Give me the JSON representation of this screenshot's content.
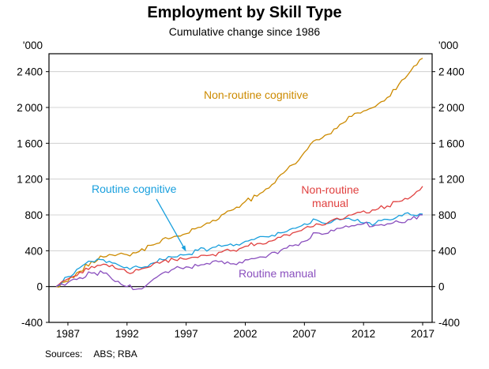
{
  "header": {
    "title": "Employment by Skill Type",
    "subtitle": "Cumulative change since 1986"
  },
  "footer": {
    "sources_label": "Sources:",
    "sources_value": "ABS; RBA"
  },
  "chart_data": {
    "type": "line",
    "title": "Employment by Skill Type",
    "subtitle": "Cumulative change since 1986",
    "unit_label": "'000",
    "ylabel": "'000",
    "grid": "horizontal",
    "legend_position": "inline-annotations",
    "xlim": [
      1985.4,
      2017.8
    ],
    "ylim": [
      -400,
      2600
    ],
    "yticks": [
      -400,
      0,
      400,
      800,
      1200,
      1600,
      2000,
      2400
    ],
    "xticks": [
      1987,
      1992,
      1997,
      2002,
      2007,
      2012,
      2017
    ],
    "x": [
      1986,
      1987,
      1988,
      1989,
      1990,
      1991,
      1992,
      1993,
      1994,
      1995,
      1996,
      1997,
      1998,
      1999,
      2000,
      2001,
      2002,
      2003,
      2004,
      2005,
      2006,
      2007,
      2008,
      2009,
      2010,
      2011,
      2012,
      2013,
      2014,
      2015,
      2016,
      2017
    ],
    "series": [
      {
        "name": "Non-routine cognitive",
        "color": "#cc8a00",
        "values": [
          0,
          60,
          170,
          280,
          330,
          345,
          355,
          390,
          460,
          530,
          560,
          590,
          660,
          710,
          800,
          860,
          950,
          1010,
          1100,
          1250,
          1360,
          1500,
          1640,
          1700,
          1810,
          1900,
          1960,
          2010,
          2110,
          2260,
          2410,
          2550
        ]
      },
      {
        "name": "Routine cognitive",
        "color": "#189fdd",
        "values": [
          0,
          110,
          210,
          280,
          300,
          260,
          215,
          215,
          255,
          300,
          330,
          355,
          405,
          420,
          450,
          455,
          505,
          545,
          555,
          600,
          650,
          700,
          745,
          705,
          745,
          745,
          710,
          705,
          750,
          795,
          800,
          810
        ]
      },
      {
        "name": "Non-routine manual",
        "color": "#e0403f",
        "values": [
          0,
          85,
          160,
          225,
          250,
          205,
          160,
          185,
          225,
          280,
          300,
          305,
          325,
          350,
          385,
          405,
          450,
          480,
          505,
          550,
          600,
          650,
          700,
          715,
          750,
          800,
          845,
          855,
          900,
          950,
          1000,
          1120
        ]
      },
      {
        "name": "Routine manual",
        "color": "#8a4fbe",
        "values": [
          0,
          45,
          100,
          150,
          150,
          55,
          0,
          -25,
          55,
          150,
          200,
          220,
          230,
          250,
          285,
          255,
          300,
          320,
          355,
          405,
          455,
          505,
          600,
          595,
          650,
          680,
          700,
          685,
          700,
          720,
          750,
          800
        ]
      }
    ],
    "annotations": [
      {
        "text": "Non-routine cognitive",
        "series": 0
      },
      {
        "text": "Routine cognitive",
        "series": 1,
        "arrow_to": {
          "x": 1997,
          "y": 355
        }
      },
      {
        "text": "Non-routine manual",
        "series": 2
      },
      {
        "text": "Routine manual",
        "series": 3
      }
    ]
  }
}
